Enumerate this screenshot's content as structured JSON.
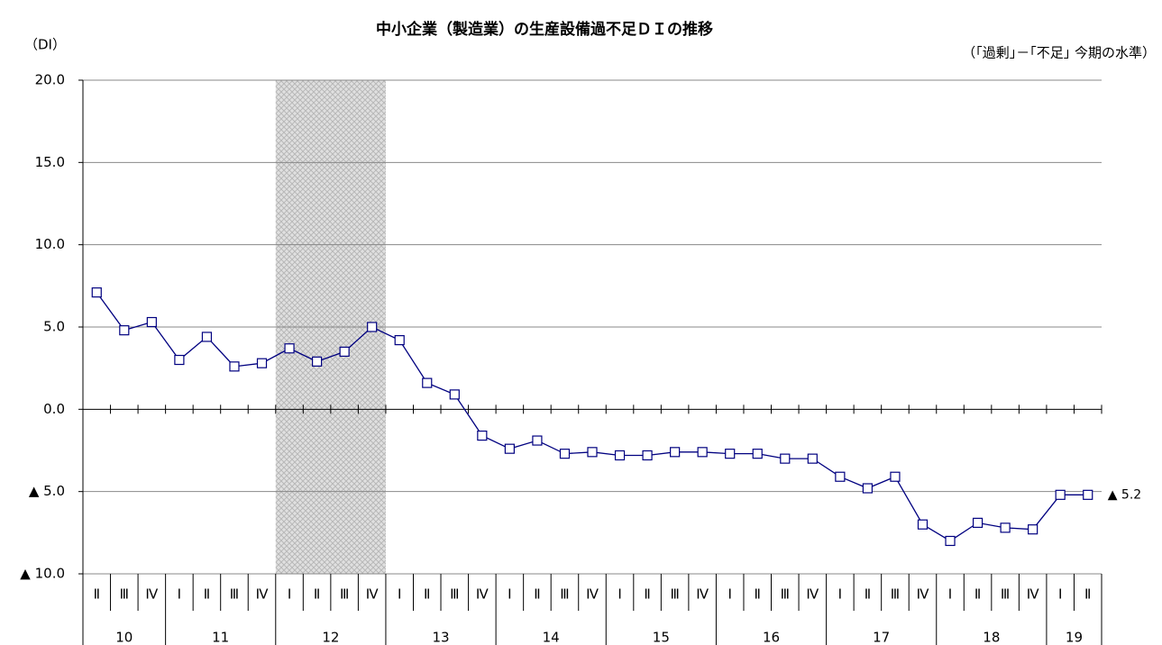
{
  "chart_data": {
    "type": "line",
    "title": "中小企業（製造業）の生産設備過不足ＤＩの推移",
    "y_label": "（DI）",
    "note": "（｢過剰｣－｢不足｣ 今期の水準）",
    "categories": [
      "Ⅱ",
      "Ⅲ",
      "Ⅳ",
      "Ⅰ",
      "Ⅱ",
      "Ⅲ",
      "Ⅳ",
      "Ⅰ",
      "Ⅱ",
      "Ⅲ",
      "Ⅳ",
      "Ⅰ",
      "Ⅱ",
      "Ⅲ",
      "Ⅳ",
      "Ⅰ",
      "Ⅱ",
      "Ⅲ",
      "Ⅳ",
      "Ⅰ",
      "Ⅱ",
      "Ⅲ",
      "Ⅳ",
      "Ⅰ",
      "Ⅱ",
      "Ⅲ",
      "Ⅳ",
      "Ⅰ",
      "Ⅱ",
      "Ⅲ",
      "Ⅳ",
      "Ⅰ",
      "Ⅱ",
      "Ⅲ",
      "Ⅳ",
      "Ⅰ",
      "Ⅱ"
    ],
    "year_labels": [
      "10",
      "11",
      "12",
      "13",
      "14",
      "15",
      "16",
      "17",
      "18",
      "19"
    ],
    "series": [
      {
        "name": "生産設備過不足DI",
        "color": "#000080",
        "values": [
          7.1,
          4.8,
          5.3,
          3.0,
          4.4,
          2.6,
          2.8,
          3.7,
          2.9,
          3.5,
          5.0,
          4.2,
          1.6,
          0.9,
          -1.6,
          -2.4,
          -1.9,
          -2.7,
          -2.6,
          -2.8,
          -2.8,
          -2.6,
          -2.6,
          -2.7,
          -2.7,
          -3.0,
          -3.0,
          -4.1,
          -4.8,
          -4.1,
          -7.0,
          -8.0,
          -6.9,
          -7.2,
          -7.3,
          -5.2,
          -5.2
        ],
        "value_labels": [
          null,
          null,
          null,
          null,
          null,
          null,
          null,
          null,
          null,
          null,
          null,
          null,
          null,
          null,
          null,
          null,
          null,
          null,
          null,
          null,
          null,
          null,
          null,
          null,
          null,
          null,
          null,
          null,
          null,
          null,
          null,
          null,
          null,
          null,
          null,
          null,
          "▲ 5.2"
        ]
      }
    ],
    "shaded_span": [
      7,
      10
    ],
    "ylim": [
      -10,
      20
    ],
    "yticks": [
      {
        "value": -10,
        "label": "▲ 10.0"
      },
      {
        "value": -5,
        "label": "▲ 5.0"
      },
      {
        "value": 0,
        "label": "0.0"
      },
      {
        "value": 5,
        "label": "5.0"
      },
      {
        "value": 10,
        "label": "10.0"
      },
      {
        "value": 15,
        "label": "15.0"
      },
      {
        "value": 20,
        "label": "20.0"
      }
    ],
    "grid": true
  }
}
